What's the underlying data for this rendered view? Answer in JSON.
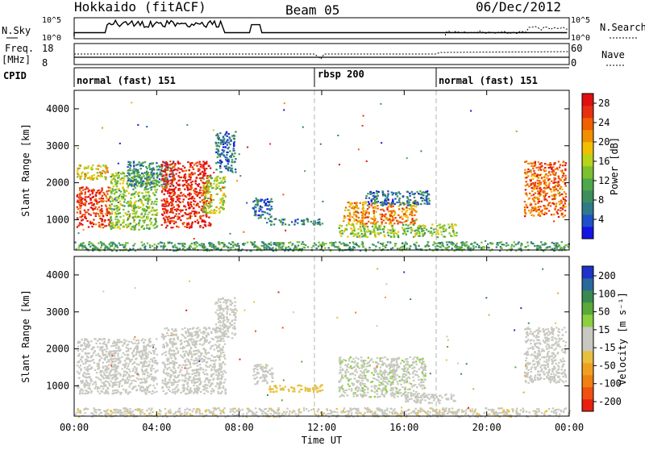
{
  "header": {
    "title": "Hokkaido (fitACF)",
    "beam": "Beam 05",
    "date": "06/Dec/2012"
  },
  "strip_nsky": {
    "left_label": "N.Sky",
    "right_label": "N.Search",
    "left_ticks": [
      "10^5",
      "10^0"
    ],
    "right_ticks": [
      "10^5",
      "10^0"
    ]
  },
  "strip_freq": {
    "left_label_top": "Freq.",
    "left_label_unit": "[MHz]",
    "right_label": "Nave",
    "left_ticks": [
      "18",
      "8"
    ],
    "right_ticks": [
      "60",
      "0"
    ]
  },
  "cpid": {
    "label": "CPID",
    "segments": [
      {
        "name": "normal (fast) 151",
        "start_hour": 0,
        "end_hour": 12
      },
      {
        "name": "rbsp 200",
        "start_hour": 12,
        "end_hour": 18
      },
      {
        "name": "normal (fast) 151",
        "start_hour": 18,
        "end_hour": 24
      }
    ]
  },
  "power_panel": {
    "ylabel": "Slant Range [km]",
    "ytick_labels": [
      "1000",
      "2000",
      "3000",
      "4000"
    ],
    "colorbar_label": "Power [dB]",
    "colorbar_ticks": [
      "4",
      "8",
      "12",
      "16",
      "20",
      "24",
      "28"
    ],
    "colorbar_colors": [
      "#1414e6",
      "#2050c8",
      "#2e7a8a",
      "#3c8f5a",
      "#4ca84a",
      "#7cc030",
      "#b8d418",
      "#f0c000",
      "#f09000",
      "#f06000",
      "#e83010",
      "#e01010"
    ]
  },
  "velocity_panel": {
    "ylabel": "Slant Range [km]",
    "ytick_labels": [
      "1000",
      "2000",
      "3000",
      "4000"
    ],
    "colorbar_label": "Velocity [m s⁻¹]",
    "colorbar_ticks": [
      "200",
      "100",
      "50",
      "15",
      "-15",
      "-50",
      "-100",
      "-200"
    ],
    "colorbar_colors": [
      "#2032c8",
      "#2a6a9a",
      "#3a8a50",
      "#5aaa3a",
      "#8ad040",
      "#c8c8c0",
      "#c8c8c0",
      "#e8c040",
      "#f0a020",
      "#f08010",
      "#f05010",
      "#e82010"
    ]
  },
  "xaxis": {
    "label": "Time UT",
    "tick_labels": [
      "00:00",
      "04:00",
      "08:00",
      "12:00",
      "16:00",
      "20:00",
      "00:00"
    ]
  },
  "chart_data": [
    {
      "type": "heatmap",
      "title": "Power [dB]",
      "xlabel": "Time UT",
      "ylabel": "Slant Range [km]",
      "xlim_hours": [
        0,
        24
      ],
      "ylim_km": [
        180,
        4500
      ],
      "clim": [
        0,
        30
      ],
      "regions": [
        {
          "t0": 0.1,
          "t1": 1.7,
          "r0": 800,
          "r1": 1900,
          "value": 27
        },
        {
          "t0": 0.1,
          "t1": 1.6,
          "r0": 2100,
          "r1": 2500,
          "value": 18
        },
        {
          "t0": 1.7,
          "t1": 4.0,
          "r0": 750,
          "r1": 2300,
          "value": 14
        },
        {
          "t0": 2.5,
          "t1": 4.8,
          "r0": 1900,
          "r1": 2600,
          "value": 8
        },
        {
          "t0": 4.2,
          "t1": 6.6,
          "r0": 800,
          "r1": 2600,
          "value": 28
        },
        {
          "t0": 6.2,
          "t1": 7.3,
          "r0": 1200,
          "r1": 2200,
          "value": 16
        },
        {
          "t0": 6.8,
          "t1": 7.8,
          "r0": 2300,
          "r1": 3400,
          "value": 6
        },
        {
          "t0": 8.6,
          "t1": 9.6,
          "r0": 1050,
          "r1": 1600,
          "value": 5
        },
        {
          "t0": 9.3,
          "t1": 12.0,
          "r0": 880,
          "r1": 1050,
          "value": 8
        },
        {
          "t0": 13.0,
          "t1": 16.6,
          "r0": 900,
          "r1": 1500,
          "value": 22
        },
        {
          "t0": 14.0,
          "t1": 17.2,
          "r0": 1400,
          "r1": 1800,
          "value": 6
        },
        {
          "t0": 12.8,
          "t1": 18.5,
          "r0": 550,
          "r1": 900,
          "value": 14
        },
        {
          "t0": 21.8,
          "t1": 23.8,
          "r0": 1100,
          "r1": 2600,
          "value": 24
        },
        {
          "t0": 0.0,
          "t1": 24.0,
          "r0": 180,
          "r1": 420,
          "value": 10
        }
      ]
    },
    {
      "type": "heatmap",
      "title": "Velocity [m s⁻¹]",
      "xlabel": "Time UT",
      "ylabel": "Slant Range [km]",
      "xlim_hours": [
        0,
        24
      ],
      "ylim_km": [
        180,
        4500
      ],
      "clim": [
        -200,
        200
      ],
      "regions": [
        {
          "t0": 0.1,
          "t1": 4.0,
          "r0": 800,
          "r1": 2300,
          "value": 0
        },
        {
          "t0": 4.2,
          "t1": 7.3,
          "r0": 800,
          "r1": 2600,
          "value": 0
        },
        {
          "t0": 6.8,
          "t1": 7.8,
          "r0": 2300,
          "r1": 3400,
          "value": 0
        },
        {
          "t0": 8.6,
          "t1": 9.6,
          "r0": 1050,
          "r1": 1600,
          "value": 0
        },
        {
          "t0": 9.3,
          "t1": 12.0,
          "r0": 850,
          "r1": 1050,
          "value": -40
        },
        {
          "t0": 12.8,
          "t1": 17.0,
          "r0": 700,
          "r1": 1800,
          "value": 30
        },
        {
          "t0": 16.0,
          "t1": 18.5,
          "r0": 550,
          "r1": 800,
          "value": 25
        },
        {
          "t0": 21.8,
          "t1": 23.8,
          "r0": 1100,
          "r1": 2600,
          "value": 0
        },
        {
          "t0": 0.0,
          "t1": 24.0,
          "r0": 180,
          "r1": 420,
          "value": -30
        }
      ]
    }
  ]
}
